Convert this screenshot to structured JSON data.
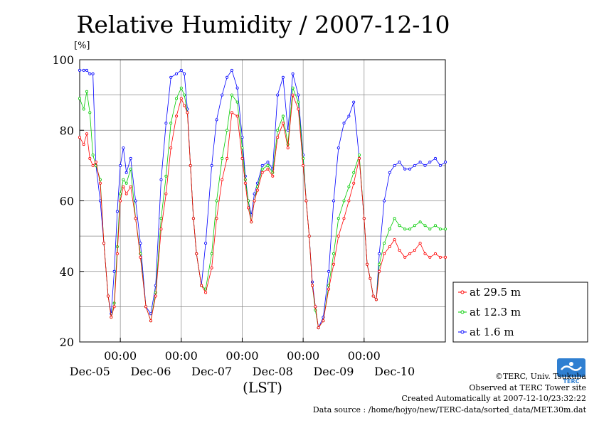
{
  "chart_data": {
    "type": "line",
    "title": "Relative Humidity / 2007-12-10",
    "ylabel": "[%]",
    "xlabel": "(LST)",
    "ylim": [
      20,
      100
    ],
    "yticks": [
      20,
      40,
      60,
      80,
      100
    ],
    "xlim": [
      -0.667,
      5.333
    ],
    "time_ticks": [
      "00:00",
      "00:00",
      "00:00",
      "00:00",
      "00:00"
    ],
    "date_labels": [
      "Dec-05",
      "Dec-06",
      "Dec-07",
      "Dec-08",
      "Dec-09",
      "Dec-10"
    ],
    "grid": true,
    "legend_position": "right",
    "series": [
      {
        "name": "at 29.5 m",
        "color": "#ff0000",
        "x": [
          -0.667,
          -0.6,
          -0.55,
          -0.5,
          -0.45,
          -0.4,
          -0.33,
          -0.27,
          -0.2,
          -0.15,
          -0.1,
          -0.05,
          0.0,
          0.05,
          0.1,
          0.17,
          0.25,
          0.33,
          0.42,
          0.5,
          0.58,
          0.67,
          0.75,
          0.83,
          0.92,
          1.0,
          1.05,
          1.1,
          1.15,
          1.2,
          1.25,
          1.33,
          1.4,
          1.5,
          1.58,
          1.67,
          1.75,
          1.83,
          1.92,
          2.0,
          2.05,
          2.1,
          2.15,
          2.2,
          2.25,
          2.33,
          2.42,
          2.5,
          2.58,
          2.67,
          2.75,
          2.83,
          2.92,
          3.0,
          3.05,
          3.1,
          3.15,
          3.2,
          3.25,
          3.33,
          3.42,
          3.5,
          3.58,
          3.67,
          3.75,
          3.83,
          3.92,
          4.0,
          4.05,
          4.1,
          4.15,
          4.2,
          4.25,
          4.33,
          4.42,
          4.5,
          4.58,
          4.67,
          4.75,
          4.83,
          4.92,
          5.0,
          5.08,
          5.17,
          5.25,
          5.333
        ],
        "y": [
          78,
          76,
          79,
          72,
          70,
          71,
          65,
          48,
          33,
          27,
          30,
          45,
          60,
          64,
          62,
          64,
          55,
          44,
          30,
          26,
          33,
          52,
          62,
          75,
          84,
          89,
          87,
          85,
          70,
          55,
          45,
          36,
          34,
          41,
          55,
          66,
          72,
          85,
          84,
          72,
          65,
          58,
          54,
          60,
          63,
          68,
          69,
          67,
          78,
          82,
          75,
          90,
          86,
          70,
          60,
          50,
          36,
          30,
          24,
          26,
          35,
          42,
          50,
          55,
          60,
          65,
          72,
          55,
          42,
          38,
          33,
          32,
          40,
          45,
          47,
          49,
          46,
          44,
          45,
          46,
          48,
          45,
          44,
          45,
          44,
          44
        ]
      },
      {
        "name": "at 12.3 m",
        "color": "#00cc00",
        "x": [
          -0.667,
          -0.6,
          -0.55,
          -0.5,
          -0.45,
          -0.4,
          -0.33,
          -0.27,
          -0.2,
          -0.15,
          -0.1,
          -0.05,
          0.0,
          0.05,
          0.1,
          0.17,
          0.25,
          0.33,
          0.42,
          0.5,
          0.58,
          0.67,
          0.75,
          0.83,
          0.92,
          1.0,
          1.05,
          1.1,
          1.15,
          1.2,
          1.25,
          1.33,
          1.4,
          1.5,
          1.58,
          1.67,
          1.75,
          1.83,
          1.92,
          2.0,
          2.05,
          2.1,
          2.15,
          2.2,
          2.25,
          2.33,
          2.42,
          2.5,
          2.58,
          2.67,
          2.75,
          2.83,
          2.92,
          3.0,
          3.05,
          3.1,
          3.15,
          3.2,
          3.25,
          3.33,
          3.42,
          3.5,
          3.58,
          3.67,
          3.75,
          3.83,
          3.92,
          4.0,
          4.05,
          4.1,
          4.15,
          4.2,
          4.25,
          4.33,
          4.42,
          4.5,
          4.58,
          4.67,
          4.75,
          4.83,
          4.92,
          5.0,
          5.08,
          5.17,
          5.25,
          5.333
        ],
        "y": [
          89,
          86,
          91,
          85,
          73,
          70,
          66,
          48,
          33,
          27,
          31,
          47,
          62,
          66,
          65,
          69,
          55,
          45,
          30,
          26,
          34,
          55,
          67,
          82,
          89,
          92,
          90,
          85,
          70,
          55,
          45,
          36,
          35,
          45,
          60,
          72,
          80,
          90,
          88,
          75,
          66,
          60,
          54,
          60,
          64,
          69,
          70,
          68,
          80,
          84,
          76,
          92,
          88,
          72,
          60,
          50,
          36,
          29,
          24,
          26,
          36,
          45,
          55,
          60,
          64,
          68,
          73,
          55,
          42,
          38,
          33,
          32,
          42,
          48,
          52,
          55,
          53,
          52,
          52,
          53,
          54,
          53,
          52,
          53,
          52,
          52
        ]
      },
      {
        "name": "at 1.6 m",
        "color": "#0000ff",
        "x": [
          -0.667,
          -0.6,
          -0.55,
          -0.5,
          -0.45,
          -0.4,
          -0.33,
          -0.27,
          -0.2,
          -0.15,
          -0.1,
          -0.05,
          0.0,
          0.05,
          0.1,
          0.17,
          0.25,
          0.33,
          0.42,
          0.5,
          0.58,
          0.67,
          0.75,
          0.83,
          0.92,
          1.0,
          1.05,
          1.1,
          1.15,
          1.2,
          1.25,
          1.33,
          1.4,
          1.5,
          1.58,
          1.67,
          1.75,
          1.83,
          1.92,
          2.0,
          2.05,
          2.1,
          2.15,
          2.2,
          2.25,
          2.33,
          2.42,
          2.5,
          2.58,
          2.67,
          2.75,
          2.83,
          2.92,
          3.0,
          3.05,
          3.1,
          3.15,
          3.2,
          3.25,
          3.33,
          3.42,
          3.5,
          3.58,
          3.67,
          3.75,
          3.83,
          3.92,
          4.0,
          4.05,
          4.1,
          4.15,
          4.2,
          4.25,
          4.33,
          4.42,
          4.5,
          4.58,
          4.67,
          4.75,
          4.83,
          4.92,
          5.0,
          5.08,
          5.17,
          5.25,
          5.333
        ],
        "y": [
          97,
          97,
          97,
          96,
          96,
          70,
          60,
          48,
          33,
          28,
          40,
          57,
          70,
          75,
          68,
          72,
          60,
          48,
          30,
          28,
          36,
          66,
          82,
          95,
          96,
          97,
          96,
          86,
          70,
          55,
          45,
          36,
          48,
          70,
          83,
          90,
          95,
          97,
          92,
          78,
          67,
          60,
          56,
          62,
          65,
          70,
          71,
          69,
          90,
          95,
          80,
          96,
          90,
          73,
          60,
          50,
          37,
          30,
          24,
          27,
          40,
          60,
          75,
          82,
          84,
          88,
          72,
          55,
          42,
          38,
          33,
          32,
          45,
          60,
          68,
          70,
          71,
          69,
          69,
          70,
          71,
          70,
          71,
          72,
          70,
          71
        ]
      }
    ]
  },
  "credits": {
    "copyright": "©TERC, Univ. Tsukuba",
    "site": "Observed at TERC Tower site",
    "created": "Created Automatically at 2007-12-10/23:32:22",
    "source": "Data source : /home/hojyo/new/TERC-data/sorted_data/MET.30m.dat"
  },
  "logo": {
    "text": "TERC",
    "color": "#2f7fd1"
  }
}
